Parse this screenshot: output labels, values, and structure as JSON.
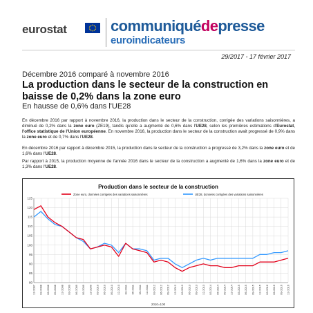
{
  "header": {
    "agency": "eurostat",
    "release_part1": "communiqué",
    "release_part2": "de",
    "release_part3": "presse",
    "series": "euroindicateurs"
  },
  "release_meta": {
    "number_date": "29/2017  -  17 février 2017"
  },
  "article": {
    "kicker": "Décembre 2016 comparé à novembre 2016",
    "title": "La production dans le secteur de la construction en baisse de 0,2% dans la zone euro",
    "subtitle": "En hausse de 0,6% dans l'UE28",
    "p1": {
      "t1": "En décembre 2016 par rapport à novembre 2016, la production dans le secteur de la construction, corrigée des variations saisonnières, a diminué de 0,2% dans la ",
      "b1": "zone euro",
      "t2": " (ZE19), tandis qu'elle a augmenté de 0,6% dans l'",
      "b2": "UE28",
      "t3": ", selon les premières estimations d'",
      "b3": "Eurostat",
      "t4": ", ",
      "b4": "l'office statistique de l'Union européenne",
      "t5": ". En novembre 2016, la production dans le secteur de la construction avait progressé de 0,9% dans la ",
      "b5": "zone euro",
      "t6": " et de 0,7% dans l'",
      "b6": "UE28",
      "t7": "."
    },
    "p2": {
      "t1": "En décembre 2016 par rapport à décembre 2015, la production dans le secteur de la construction a progressé de 3,2% dans la ",
      "b1": "zone euro",
      "t2": " et de 1,6% dans l'",
      "b2": "UE28",
      "t3": "."
    },
    "p3": {
      "t1": "Par rapport à 2015, la production moyenne de l'année 2016 dans le secteur de la construction a augmenté de 1,6% dans la ",
      "b1": "zone euro",
      "t2": " et de 1,3% dans l'",
      "b2": "UE28",
      "t3": "."
    }
  },
  "chart_data": {
    "type": "line",
    "title": "Production dans le secteur de la construction",
    "xlabel": "2010=100",
    "ylabel": "",
    "ylim": [
      80,
      125
    ],
    "yticks": [
      80,
      85,
      90,
      95,
      100,
      105,
      110,
      115,
      120,
      125
    ],
    "x": [
      "12-2007",
      "03-2008",
      "06-2008",
      "09-2008",
      "12-2008",
      "03-2009",
      "06-2009",
      "09-2009",
      "12-2009",
      "03-2010",
      "06-2010",
      "09-2010",
      "12-2010",
      "03-2011",
      "06-2011",
      "09-2011",
      "12-2011",
      "03-2012",
      "06-2012",
      "09-2012",
      "12-2012",
      "03-2013",
      "06-2013",
      "09-2013",
      "12-2013",
      "03-2014",
      "06-2014",
      "09-2014",
      "12-2014",
      "03-2015",
      "06-2015",
      "09-2015",
      "12-2015",
      "03-2016",
      "06-2016",
      "09-2016",
      "12-2016"
    ],
    "legend_placement": "top",
    "grid": true,
    "colors": {
      "ze": "#e2001a",
      "ue": "#3399ff"
    },
    "series": [
      {
        "name": "Zone euro, données corrigées des variations saisonnières",
        "values": [
          119,
          121,
          115,
          112,
          110,
          107,
          104,
          103,
          98,
          99,
          100,
          99,
          94,
          101,
          98,
          97,
          96,
          91,
          92,
          91,
          88,
          86,
          88,
          89,
          90,
          89,
          89,
          88,
          88,
          89,
          89,
          89,
          91,
          91,
          91,
          92,
          93
        ]
      },
      {
        "name": "UE28, données corrigées des variations saisonnières",
        "values": [
          115,
          118,
          114,
          111,
          110,
          107,
          104,
          102,
          98,
          99,
          101,
          100,
          96,
          101,
          98,
          98,
          97,
          92,
          93,
          93,
          90,
          88,
          90,
          92,
          93,
          92,
          93,
          93,
          93,
          93,
          93,
          93,
          95,
          95,
          96,
          96,
          97
        ]
      }
    ]
  }
}
